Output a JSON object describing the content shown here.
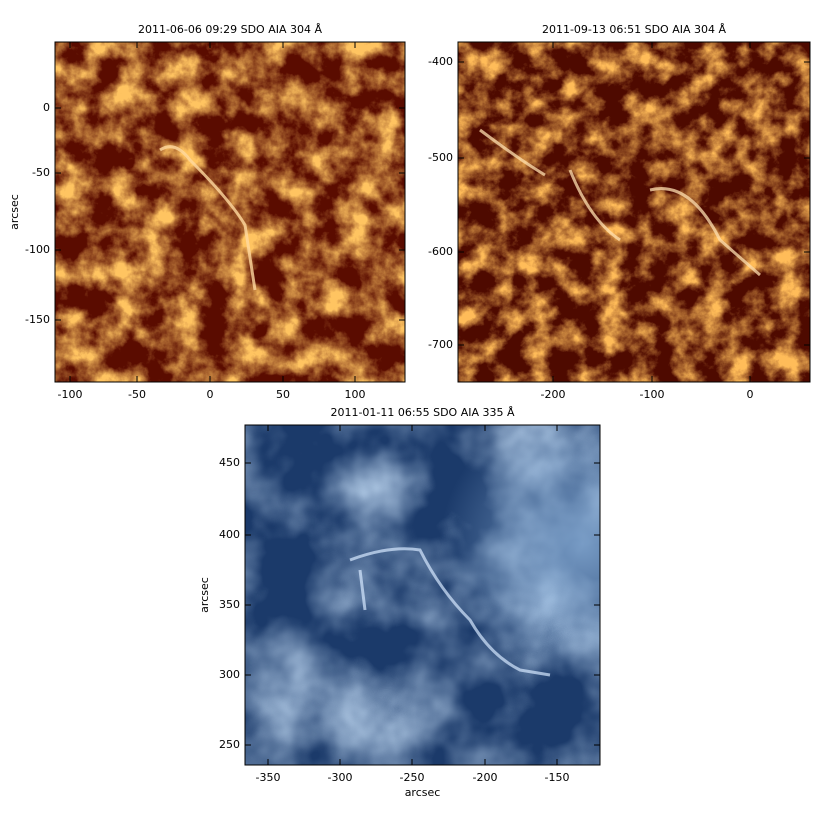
{
  "panels": [
    {
      "title": "2011-06-06 09:29 SDO AIA 304 Å",
      "xticks": [
        "-100",
        "-50",
        "0",
        "50",
        "100"
      ],
      "yticks": [
        "0",
        "-50",
        "-100",
        "-150"
      ],
      "ylabel": "arcsec"
    },
    {
      "title": "2011-09-13 06:51 SDO AIA 304 Å",
      "xticks": [
        "-200",
        "-100",
        "0"
      ],
      "yticks": [
        "-400",
        "-500",
        "-600",
        "-700"
      ]
    },
    {
      "title": "2011-01-11 06:55 SDO AIA 335 Å",
      "xticks": [
        "-350",
        "-300",
        "-250",
        "-200",
        "-150"
      ],
      "yticks": [
        "450",
        "400",
        "350",
        "300",
        "250"
      ],
      "xlabel": "arcsec",
      "ylabel": "arcsec"
    }
  ]
}
